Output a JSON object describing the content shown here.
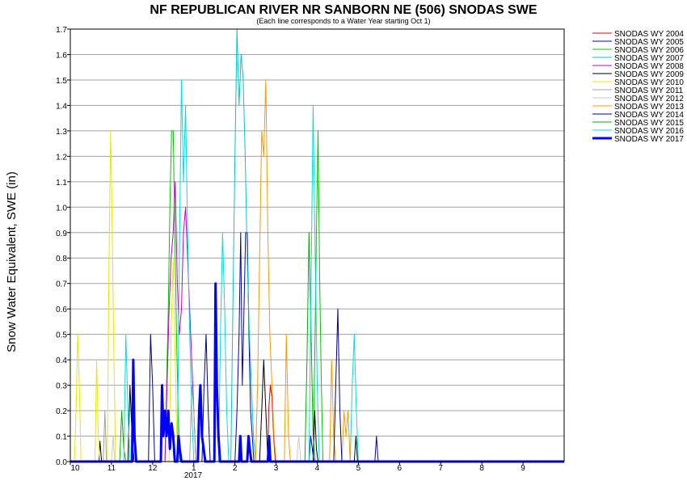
{
  "chart_data": {
    "type": "line",
    "title": "NF REPUBLICAN RIVER NR SANBORN NE (506) SNODAS SWE",
    "subtitle": "(Each line corresponds to a Water Year starting Oct 1)",
    "ylabel": "Snow Water Equivalent, SWE (in)",
    "xlabel": "",
    "ylim": [
      0,
      1.7
    ],
    "yticks": [
      "0.0",
      "0.1",
      "0.2",
      "0.3",
      "0.4",
      "0.5",
      "0.6",
      "0.7",
      "0.8",
      "0.9",
      "1.0",
      "1.1",
      "1.2",
      "1.3",
      "1.4",
      "1.5",
      "1.6",
      "1.7"
    ],
    "xlim": [
      0,
      12
    ],
    "xticks": [
      {
        "label": "10",
        "value": 0
      },
      {
        "label": "11",
        "value": 1
      },
      {
        "label": "12",
        "value": 2
      },
      {
        "label": "1",
        "value": 3
      },
      {
        "label": "2",
        "value": 4
      },
      {
        "label": "3",
        "value": 5
      },
      {
        "label": "4",
        "value": 6
      },
      {
        "label": "5",
        "value": 7
      },
      {
        "label": "6",
        "value": 8
      },
      {
        "label": "7",
        "value": 9
      },
      {
        "label": "8",
        "value": 10
      },
      {
        "label": "9",
        "value": 11
      }
    ],
    "year_label": "2017",
    "grid": true,
    "legend_position": "top-right",
    "series": [
      {
        "name": "SNODAS WY 2004",
        "color": "#e00000",
        "width": 1,
        "points": [
          [
            0,
            0
          ],
          [
            4.8,
            0
          ],
          [
            4.82,
            0.2
          ],
          [
            4.86,
            0.3
          ],
          [
            4.9,
            0.25
          ],
          [
            4.94,
            0.1
          ],
          [
            4.98,
            0
          ],
          [
            12,
            0
          ]
        ]
      },
      {
        "name": "SNODAS WY 2005",
        "color": "#0000c8",
        "width": 1,
        "points": [
          [
            0,
            0
          ],
          [
            4.0,
            0
          ],
          [
            4.05,
            0.2
          ],
          [
            4.1,
            0.5
          ],
          [
            4.14,
            0.9
          ],
          [
            4.18,
            0.3
          ],
          [
            4.22,
            0.6
          ],
          [
            4.26,
            0.9
          ],
          [
            4.3,
            0.9
          ],
          [
            4.34,
            0.5
          ],
          [
            4.38,
            0.2
          ],
          [
            4.42,
            0.1
          ],
          [
            4.46,
            0
          ],
          [
            5.8,
            0
          ],
          [
            5.84,
            0.1
          ],
          [
            5.88,
            0.05
          ],
          [
            5.92,
            0
          ],
          [
            7.4,
            0
          ],
          [
            7.44,
            0.1
          ],
          [
            7.48,
            0
          ],
          [
            12,
            0
          ]
        ]
      },
      {
        "name": "SNODAS WY 2006",
        "color": "#00c800",
        "width": 1,
        "points": [
          [
            0,
            0
          ],
          [
            2.3,
            0
          ],
          [
            2.34,
            0.3
          ],
          [
            2.38,
            0.6
          ],
          [
            2.42,
            1.0
          ],
          [
            2.46,
            1.3
          ],
          [
            2.5,
            1.3
          ],
          [
            2.54,
            0.9
          ],
          [
            2.58,
            0.5
          ],
          [
            2.62,
            0.2
          ],
          [
            2.66,
            0
          ],
          [
            5.9,
            0
          ],
          [
            5.94,
            0.4
          ],
          [
            5.98,
            0.9
          ],
          [
            6.02,
            1.3
          ],
          [
            6.06,
            0.7
          ],
          [
            6.1,
            0.3
          ],
          [
            6.14,
            0
          ],
          [
            12,
            0
          ]
        ]
      },
      {
        "name": "SNODAS WY 2007",
        "color": "#00c8c8",
        "width": 1,
        "points": [
          [
            0,
            0
          ],
          [
            3.9,
            0
          ],
          [
            3.95,
            0.6
          ],
          [
            4.0,
            1.2
          ],
          [
            4.05,
            1.7
          ],
          [
            4.1,
            1.4
          ],
          [
            4.15,
            1.6
          ],
          [
            4.2,
            1.5
          ],
          [
            4.25,
            1.2
          ],
          [
            4.3,
            0.8
          ],
          [
            4.35,
            0.5
          ],
          [
            4.4,
            0.3
          ],
          [
            4.45,
            0.1
          ],
          [
            4.5,
            0
          ],
          [
            12,
            0
          ]
        ]
      },
      {
        "name": "SNODAS WY 2008",
        "color": "#c800c8",
        "width": 1,
        "points": [
          [
            0,
            0
          ],
          [
            2.3,
            0
          ],
          [
            2.35,
            0.3
          ],
          [
            2.4,
            0.6
          ],
          [
            2.45,
            0.8
          ],
          [
            2.5,
            0.9
          ],
          [
            2.55,
            1.1
          ],
          [
            2.6,
            0.7
          ],
          [
            2.65,
            0.5
          ],
          [
            2.7,
            0.6
          ],
          [
            2.75,
            0.9
          ],
          [
            2.8,
            1.0
          ],
          [
            2.85,
            0.8
          ],
          [
            2.9,
            0.6
          ],
          [
            2.95,
            0.4
          ],
          [
            3.0,
            0.2
          ],
          [
            3.05,
            0
          ],
          [
            12,
            0
          ]
        ]
      },
      {
        "name": "SNODAS WY 2009",
        "color": "#000000",
        "width": 1,
        "points": [
          [
            0,
            0
          ],
          [
            0.7,
            0
          ],
          [
            0.72,
            0.08
          ],
          [
            0.76,
            0
          ],
          [
            1.4,
            0
          ],
          [
            1.45,
            0.3
          ],
          [
            1.5,
            0.1
          ],
          [
            1.55,
            0
          ],
          [
            4.6,
            0
          ],
          [
            4.65,
            0.2
          ],
          [
            4.7,
            0.4
          ],
          [
            4.75,
            0.2
          ],
          [
            4.8,
            0
          ],
          [
            5.9,
            0
          ],
          [
            5.94,
            0.2
          ],
          [
            5.98,
            0.05
          ],
          [
            6.02,
            0
          ],
          [
            6.9,
            0
          ],
          [
            6.94,
            0.1
          ],
          [
            6.98,
            0
          ],
          [
            12,
            0
          ]
        ]
      },
      {
        "name": "SNODAS WY 2010",
        "color": "#e8e800",
        "width": 1,
        "points": [
          [
            0,
            0
          ],
          [
            0.1,
            0
          ],
          [
            0.14,
            0.2
          ],
          [
            0.18,
            0.5
          ],
          [
            0.22,
            0.3
          ],
          [
            0.26,
            0
          ],
          [
            0.6,
            0
          ],
          [
            0.64,
            0.4
          ],
          [
            0.68,
            0.1
          ],
          [
            0.72,
            0
          ],
          [
            0.9,
            0
          ],
          [
            0.94,
            0.8
          ],
          [
            0.98,
            1.3
          ],
          [
            1.02,
            0.9
          ],
          [
            1.06,
            0.4
          ],
          [
            1.1,
            0
          ],
          [
            2.4,
            0
          ],
          [
            2.45,
            0.5
          ],
          [
            2.5,
            0.8
          ],
          [
            2.55,
            0.4
          ],
          [
            2.6,
            0
          ],
          [
            12,
            0
          ]
        ]
      },
      {
        "name": "SNODAS WY 2011",
        "color": "#a0a0a0",
        "width": 1,
        "points": [
          [
            0,
            0
          ],
          [
            0.8,
            0
          ],
          [
            0.84,
            0.2
          ],
          [
            0.88,
            0
          ],
          [
            2.9,
            0
          ],
          [
            2.95,
            0.3
          ],
          [
            3.0,
            0.2
          ],
          [
            3.05,
            0
          ],
          [
            12,
            0
          ]
        ]
      },
      {
        "name": "SNODAS WY 2012",
        "color": "#c8c8c8",
        "width": 1,
        "points": [
          [
            0,
            0
          ],
          [
            1.0,
            0
          ],
          [
            1.04,
            0.1
          ],
          [
            1.08,
            0
          ],
          [
            5.5,
            0
          ],
          [
            5.55,
            0.1
          ],
          [
            5.6,
            0
          ],
          [
            12,
            0
          ]
        ]
      },
      {
        "name": "SNODAS WY 2013",
        "color": "#ff9900",
        "width": 1,
        "points": [
          [
            0,
            0
          ],
          [
            4.5,
            0
          ],
          [
            4.55,
            0.3
          ],
          [
            4.6,
            0.8
          ],
          [
            4.65,
            1.3
          ],
          [
            4.7,
            1.2
          ],
          [
            4.75,
            1.5
          ],
          [
            4.8,
            0.9
          ],
          [
            4.85,
            0.5
          ],
          [
            4.9,
            0.3
          ],
          [
            4.95,
            0.1
          ],
          [
            5.0,
            0
          ],
          [
            5.2,
            0
          ],
          [
            5.25,
            0.5
          ],
          [
            5.3,
            0.1
          ],
          [
            5.35,
            0
          ],
          [
            6.3,
            0
          ],
          [
            6.35,
            0.4
          ],
          [
            6.4,
            0.1
          ],
          [
            6.45,
            0
          ],
          [
            6.6,
            0
          ],
          [
            6.65,
            0.2
          ],
          [
            6.7,
            0.1
          ],
          [
            6.75,
            0.2
          ],
          [
            6.8,
            0
          ],
          [
            12,
            0
          ]
        ]
      },
      {
        "name": "SNODAS WY 2014",
        "color": "#000080",
        "width": 1,
        "points": [
          [
            0,
            0
          ],
          [
            1.9,
            0
          ],
          [
            1.95,
            0.5
          ],
          [
            2.0,
            0.3
          ],
          [
            2.05,
            0
          ],
          [
            3.2,
            0
          ],
          [
            3.25,
            0.3
          ],
          [
            3.3,
            0.5
          ],
          [
            3.35,
            0.2
          ],
          [
            3.4,
            0
          ],
          [
            6.4,
            0
          ],
          [
            6.45,
            0.3
          ],
          [
            6.5,
            0.6
          ],
          [
            6.55,
            0.2
          ],
          [
            6.6,
            0
          ],
          [
            12,
            0
          ]
        ]
      },
      {
        "name": "SNODAS WY 2015",
        "color": "#00b000",
        "width": 1,
        "points": [
          [
            0,
            0
          ],
          [
            1.2,
            0
          ],
          [
            1.25,
            0.2
          ],
          [
            1.3,
            0.05
          ],
          [
            1.35,
            0
          ],
          [
            5.7,
            0
          ],
          [
            5.75,
            0.4
          ],
          [
            5.8,
            0.9
          ],
          [
            5.85,
            0.5
          ],
          [
            5.9,
            0.1
          ],
          [
            5.95,
            0
          ],
          [
            12,
            0
          ]
        ]
      },
      {
        "name": "SNODAS WY 2016",
        "color": "#00e0e0",
        "width": 1,
        "points": [
          [
            0,
            0
          ],
          [
            1.3,
            0
          ],
          [
            1.35,
            0.5
          ],
          [
            1.4,
            0.2
          ],
          [
            1.45,
            0
          ],
          [
            2.6,
            0
          ],
          [
            2.65,
            0.8
          ],
          [
            2.7,
            1.5
          ],
          [
            2.75,
            1.1
          ],
          [
            2.8,
            1.4
          ],
          [
            2.85,
            0.9
          ],
          [
            2.9,
            0.5
          ],
          [
            2.95,
            0.2
          ],
          [
            3.0,
            0
          ],
          [
            3.6,
            0
          ],
          [
            3.65,
            0.5
          ],
          [
            3.7,
            0.9
          ],
          [
            3.75,
            0.6
          ],
          [
            3.8,
            0.2
          ],
          [
            3.85,
            0
          ],
          [
            5.8,
            0
          ],
          [
            5.85,
            0.7
          ],
          [
            5.9,
            1.4
          ],
          [
            5.95,
            0.8
          ],
          [
            6.0,
            0.3
          ],
          [
            6.05,
            0
          ],
          [
            6.8,
            0
          ],
          [
            6.85,
            0.3
          ],
          [
            6.9,
            0.5
          ],
          [
            6.95,
            0.2
          ],
          [
            7.0,
            0
          ],
          [
            12,
            0
          ]
        ]
      },
      {
        "name": "SNODAS WY 2017",
        "color": "#0000ff",
        "width": 3,
        "points": [
          [
            0,
            0
          ],
          [
            1.5,
            0
          ],
          [
            1.53,
            0.4
          ],
          [
            1.56,
            0.1
          ],
          [
            1.6,
            0
          ],
          [
            2.2,
            0
          ],
          [
            2.23,
            0.3
          ],
          [
            2.26,
            0.1
          ],
          [
            2.3,
            0.2
          ],
          [
            2.34,
            0.1
          ],
          [
            2.38,
            0.2
          ],
          [
            2.42,
            0.05
          ],
          [
            2.46,
            0.15
          ],
          [
            2.5,
            0.1
          ],
          [
            2.54,
            0
          ],
          [
            2.6,
            0
          ],
          [
            2.63,
            0.1
          ],
          [
            2.66,
            0.05
          ],
          [
            2.7,
            0
          ],
          [
            3.1,
            0
          ],
          [
            3.13,
            0.2
          ],
          [
            3.16,
            0.3
          ],
          [
            3.2,
            0.1
          ],
          [
            3.24,
            0.05
          ],
          [
            3.28,
            0
          ],
          [
            3.5,
            0
          ],
          [
            3.53,
            0.7
          ],
          [
            3.56,
            0.3
          ],
          [
            3.6,
            0.1
          ],
          [
            3.64,
            0
          ],
          [
            4.1,
            0
          ],
          [
            4.13,
            0.1
          ],
          [
            4.16,
            0
          ],
          [
            4.3,
            0
          ],
          [
            4.33,
            0.1
          ],
          [
            4.36,
            0.05
          ],
          [
            4.4,
            0
          ],
          [
            4.8,
            0
          ],
          [
            4.83,
            0.1
          ],
          [
            4.86,
            0
          ],
          [
            12,
            0
          ]
        ]
      }
    ]
  }
}
